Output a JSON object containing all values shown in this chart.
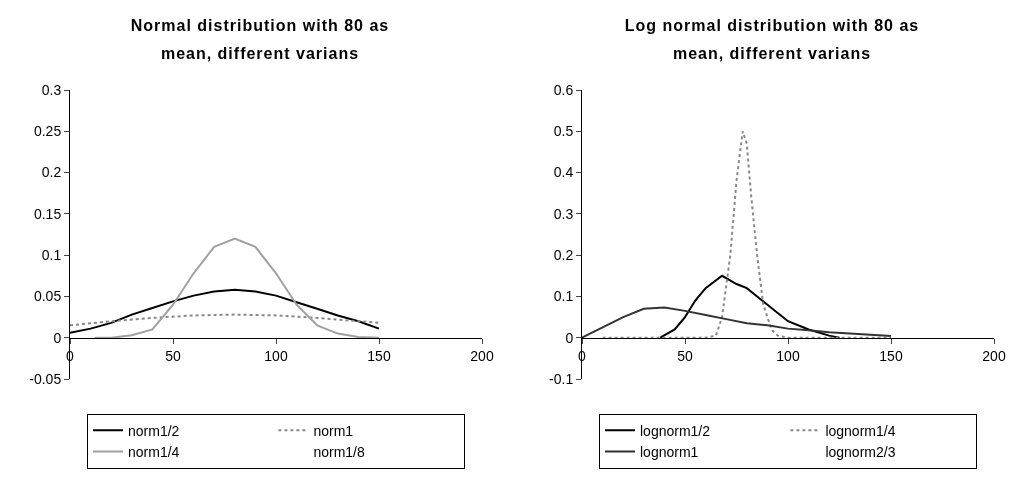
{
  "chart_data": [
    {
      "type": "line",
      "title": "Normal distribution with 80 as mean, different varians",
      "xlim": [
        0,
        200
      ],
      "xticks": [
        0,
        50,
        100,
        150,
        200
      ],
      "ylim": [
        -0.05,
        0.3
      ],
      "yticks": [
        -0.05,
        0,
        0.05,
        0.1,
        0.15,
        0.2,
        0.25,
        0.3
      ],
      "grid": false,
      "legend": "bottom",
      "marker": "none",
      "series": [
        {
          "name": "norm1/2",
          "color": "#000000",
          "line_style": "solid",
          "x": [
            0,
            10,
            20,
            30,
            40,
            50,
            60,
            70,
            80,
            90,
            100,
            110,
            120,
            130,
            140,
            150
          ],
          "values": [
            0.006,
            0.011,
            0.018,
            0.028,
            0.036,
            0.044,
            0.051,
            0.056,
            0.058,
            0.056,
            0.051,
            0.043,
            0.035,
            0.027,
            0.02,
            0.011
          ]
        },
        {
          "name": "norm1",
          "color": "#888888",
          "line_style": "dotted",
          "x": [
            0,
            20,
            40,
            60,
            80,
            100,
            120,
            140,
            150
          ],
          "values": [
            0.015,
            0.02,
            0.024,
            0.027,
            0.028,
            0.027,
            0.024,
            0.02,
            0.018
          ]
        },
        {
          "name": "norm1/4",
          "color": "#a0a0a0",
          "line_style": "solid",
          "x": [
            12,
            20,
            30,
            40,
            50,
            60,
            70,
            80,
            90,
            100,
            110,
            120,
            130,
            140,
            150
          ],
          "values": [
            0,
            0,
            0.003,
            0.01,
            0.04,
            0.078,
            0.11,
            0.12,
            0.11,
            0.078,
            0.04,
            0.015,
            0.005,
            0.001,
            0
          ]
        },
        {
          "name": "norm1/8"
        }
      ]
    },
    {
      "type": "line",
      "title": "Log normal distribution with 80 as mean, different varians",
      "xlim": [
        0,
        200
      ],
      "xticks": [
        0,
        50,
        100,
        150,
        200
      ],
      "ylim": [
        -0.1,
        0.6
      ],
      "yticks": [
        -0.1,
        0,
        0.1,
        0.2,
        0.3,
        0.4,
        0.5,
        0.6
      ],
      "grid": false,
      "legend": "bottom",
      "marker": "none",
      "series": [
        {
          "name": "lognorm1/2",
          "color": "#000000",
          "line_style": "solid",
          "x": [
            38,
            45,
            50,
            55,
            60,
            68,
            75,
            80,
            90,
            100,
            110,
            120,
            125
          ],
          "values": [
            0,
            0.02,
            0.05,
            0.09,
            0.12,
            0.15,
            0.13,
            0.12,
            0.08,
            0.04,
            0.02,
            0.005,
            0
          ]
        },
        {
          "name": "lognorm1/4",
          "color": "#888888",
          "line_style": "dotted",
          "x": [
            10,
            60,
            65,
            68,
            72,
            75,
            78,
            80,
            82,
            85,
            88,
            92,
            95,
            100,
            150
          ],
          "values": [
            0,
            0,
            0.005,
            0.05,
            0.2,
            0.38,
            0.5,
            0.47,
            0.35,
            0.2,
            0.08,
            0.02,
            0.005,
            0,
            0
          ]
        },
        {
          "name": "lognorm1",
          "color": "#333333",
          "line_style": "solid",
          "x": [
            0,
            10,
            20,
            30,
            40,
            50,
            60,
            70,
            80,
            90,
            100,
            110,
            120,
            130,
            140,
            150
          ],
          "values": [
            0,
            0.025,
            0.05,
            0.07,
            0.073,
            0.065,
            0.055,
            0.045,
            0.035,
            0.03,
            0.022,
            0.018,
            0.013,
            0.01,
            0.007,
            0.004
          ]
        },
        {
          "name": "lognorm2/3"
        }
      ]
    }
  ]
}
